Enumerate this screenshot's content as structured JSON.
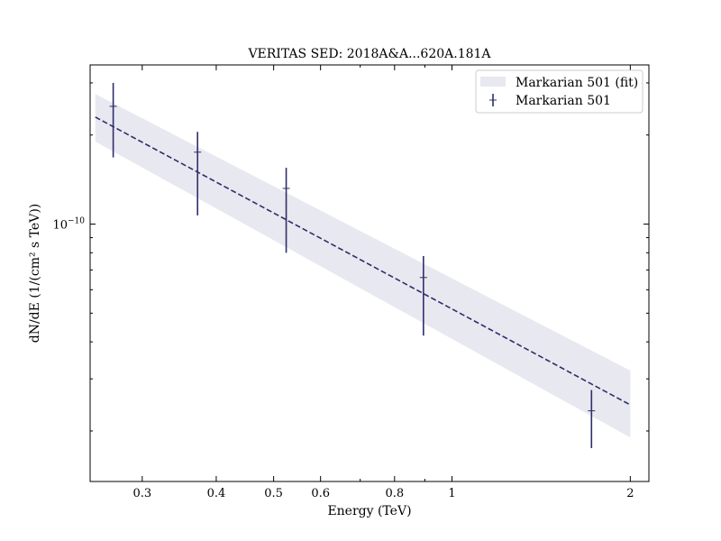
{
  "chart_data": {
    "type": "scatter",
    "title": "VERITAS SED: 2018A&A...620A.181A",
    "xlabel": "Energy (TeV)",
    "ylabel": "dN/dE (1/(cm² s TeV))",
    "xscale": "log",
    "yscale": "log",
    "xlim": [
      0.245,
      2.15
    ],
    "ylim": [
      1.35e-11,
      3.45e-10
    ],
    "x_ticks": [
      {
        "value": 0.3,
        "label": "0.3"
      },
      {
        "value": 0.4,
        "label": "0.4"
      },
      {
        "value": 0.5,
        "label": "0.5"
      },
      {
        "value": 0.6,
        "label": "0.6"
      },
      {
        "value": 0.8,
        "label": "0.8"
      },
      {
        "value": 1,
        "label": "1"
      },
      {
        "value": 2,
        "label": "2"
      }
    ],
    "y_ticks": [
      {
        "value": 1e-10,
        "label_base": "10",
        "label_exp": "−10"
      }
    ],
    "legend_position": "top-right",
    "series": [
      {
        "name": "Markarian 501 (fit)",
        "kind": "band",
        "color": "#e8e8f0",
        "x": [
          0.25,
          2.0
        ],
        "y_low": [
          1.9e-10,
          1.9e-11
        ],
        "y_high": [
          2.75e-10,
          3.2e-11
        ]
      },
      {
        "kind": "line",
        "style": "dashed",
        "color": "#2e2e6b",
        "x": [
          0.25,
          2.0
        ],
        "y": [
          2.3e-10,
          2.45e-11
        ]
      },
      {
        "name": "Markarian 501",
        "kind": "errorbar",
        "color": "#2e2e6b",
        "x": [
          0.268,
          0.372,
          0.525,
          0.895,
          1.72
        ],
        "y": [
          2.5e-10,
          1.75e-10,
          1.32e-10,
          6.6e-11,
          2.34e-11
        ],
        "y_low": [
          1.68e-10,
          1.07e-10,
          8e-11,
          4.2e-11,
          1.75e-11
        ],
        "y_high": [
          3e-10,
          2.05e-10,
          1.55e-10,
          7.8e-11,
          2.75e-11
        ]
      }
    ]
  }
}
